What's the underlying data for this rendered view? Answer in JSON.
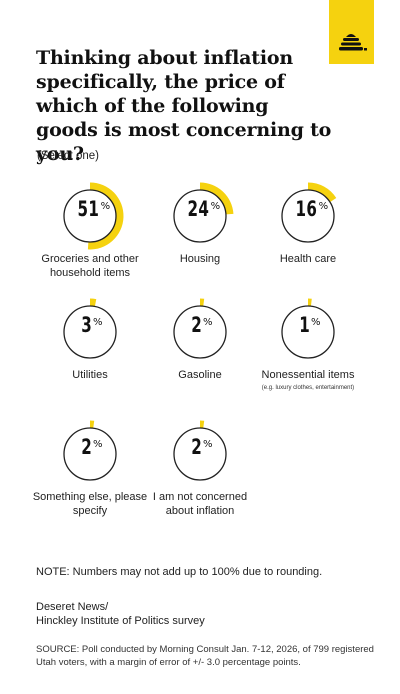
{
  "title": "Thinking about inflation specifically, the price of which of the following goods is most concerning to you?",
  "subtitle": "(Select one)",
  "logo_icon": "beehive-icon",
  "colors": {
    "accent": "#f5d20f",
    "ring": "#222222"
  },
  "chart_data": {
    "type": "pie",
    "unit": "%",
    "items": [
      {
        "label": "Groceries and other household items",
        "value": 51
      },
      {
        "label": "Housing",
        "value": 24
      },
      {
        "label": "Health care",
        "value": 16
      },
      {
        "label": "Utilities",
        "value": 3
      },
      {
        "label": "Gasoline",
        "value": 2
      },
      {
        "label": "Nonessential items",
        "sublabel": "(e.g. luxury clothes, entertainment)",
        "value": 1
      },
      {
        "label": "Something else, please specify",
        "value": 2
      },
      {
        "label": "I am not concerned about inflation",
        "value": 2
      }
    ]
  },
  "note": "NOTE: Numbers may not add up to 100% due to rounding.",
  "source_name": "Deseret News/\nHinckley Institute of Politics survey",
  "source_detail": "SOURCE: Poll conducted by Morning Consult Jan. 7-12, 2026, of 799 registered Utah voters, with a margin of error of +/- 3.0 percentage points."
}
